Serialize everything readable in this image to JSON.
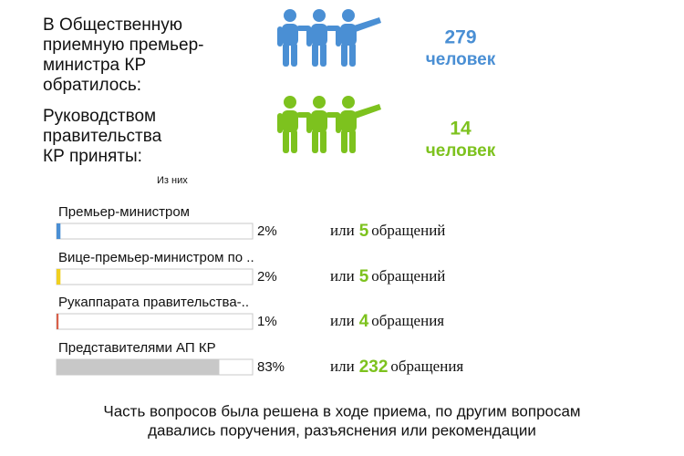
{
  "stats": [
    {
      "lines": [
        "В Общественную",
        "приемную премьер-",
        "министра КР",
        "обратилось:"
      ],
      "value": 279,
      "unit": "человек",
      "color": "#4a8fd4"
    },
    {
      "lines": [
        "Руководством",
        "правительства",
        "КР приняты:"
      ],
      "value": 14,
      "unit": "человек",
      "color": "#7dc21e"
    }
  ],
  "chart_data": {
    "type": "bar",
    "subtitle": "Из них",
    "categories": [
      "Премьер-министром",
      "Вице-премьер-министром по ..",
      "Рукаппарата правительства-..",
      "Представителями АП КР"
    ],
    "values": [
      2,
      2,
      1,
      83
    ],
    "value_labels": [
      "2%",
      "2%",
      "1%",
      "83%"
    ],
    "colors": [
      "#4a8fd4",
      "#f0d020",
      "#d9604a",
      "#c8c8c8"
    ],
    "xlim": [
      0,
      100
    ],
    "notes": [
      {
        "prefix": "или",
        "count": 5,
        "suffix": "обращений"
      },
      {
        "prefix": "или",
        "count": 5,
        "suffix": "обращений"
      },
      {
        "prefix": "или",
        "count": 4,
        "suffix": "обращения"
      },
      {
        "prefix": "или",
        "count": 232,
        "suffix": "обращения"
      }
    ]
  },
  "footer": [
    "Часть вопросов была решена в ходе приема, по другим вопросам",
    "давались поручения, разъяснения или рекомендации"
  ]
}
